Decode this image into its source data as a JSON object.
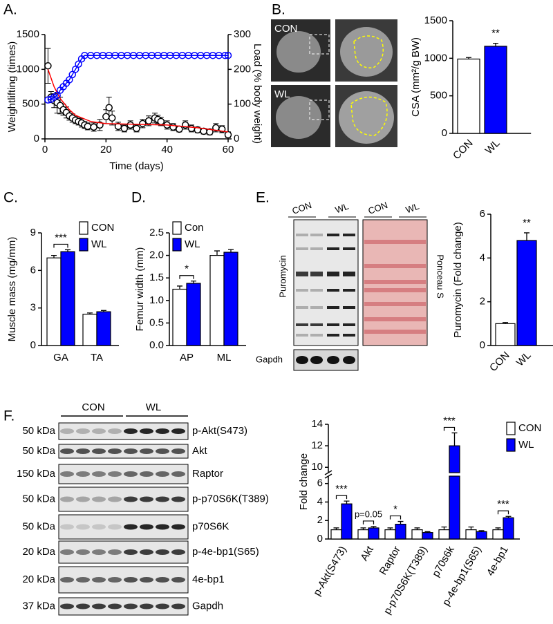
{
  "chart_data": [
    {
      "type": "line",
      "label": "A.",
      "xlabel": "Time (days)",
      "ylabel": "Weightlifting (times)",
      "y2label": "Load (% body weight)",
      "xlim": [
        0,
        60
      ],
      "xticks": [
        0,
        20,
        40,
        60
      ],
      "ylim": [
        0,
        1500
      ],
      "yticks": [
        0,
        500,
        1000,
        1500
      ],
      "y2lim": [
        0,
        300
      ],
      "y2ticks": [
        0,
        100,
        200,
        300
      ],
      "series": [
        {
          "color": "#000000",
          "marker": "circle",
          "line": false,
          "x": [
            1,
            2,
            3,
            4,
            5,
            6,
            7,
            8,
            9,
            10,
            11,
            12,
            13,
            14,
            16,
            18,
            20,
            21,
            22,
            24,
            26,
            28,
            30,
            32,
            34,
            36,
            37,
            38,
            40,
            42,
            44,
            46,
            48,
            50,
            52,
            54,
            56,
            58,
            60
          ],
          "values": [
            1050,
            600,
            550,
            520,
            480,
            420,
            380,
            330,
            300,
            270,
            250,
            230,
            200,
            180,
            170,
            200,
            320,
            450,
            300,
            180,
            150,
            200,
            150,
            220,
            260,
            300,
            280,
            250,
            200,
            170,
            140,
            200,
            150,
            130,
            110,
            100,
            160,
            140,
            60
          ],
          "errors": [
            250,
            80,
            100,
            150,
            120,
            80,
            80,
            60,
            60,
            50,
            50,
            60,
            50,
            50,
            60,
            80,
            100,
            150,
            100,
            60,
            50,
            60,
            50,
            60,
            70,
            70,
            60,
            60,
            60,
            50,
            40,
            60,
            50,
            40,
            40,
            40,
            60,
            50,
            40
          ]
        },
        {
          "color": "#ff0000",
          "marker": "none",
          "line": true,
          "x": [
            1,
            3,
            5,
            8,
            10,
            15,
            20,
            30,
            40,
            50,
            55,
            60
          ],
          "values": [
            1000,
            750,
            580,
            420,
            340,
            250,
            220,
            210,
            200,
            160,
            130,
            100
          ]
        },
        {
          "color": "#0000ff",
          "marker": "circle",
          "line": true,
          "axis": "y2",
          "x": [
            1,
            2,
            3,
            4,
            5,
            6,
            7,
            8,
            9,
            10,
            11,
            12,
            13,
            15,
            17,
            19,
            21,
            23,
            25,
            27,
            29,
            31,
            33,
            35,
            37,
            39,
            41,
            43,
            45,
            47,
            49,
            51,
            53,
            55,
            57,
            59,
            60
          ],
          "values": [
            112,
            114,
            120,
            125,
            140,
            150,
            160,
            170,
            185,
            200,
            215,
            230,
            240,
            240,
            240,
            240,
            240,
            240,
            240,
            240,
            240,
            240,
            240,
            240,
            240,
            240,
            240,
            240,
            240,
            240,
            240,
            240,
            240,
            240,
            240,
            240,
            240
          ]
        }
      ]
    },
    {
      "type": "bar",
      "label": "B.",
      "image_labels": [
        "CON",
        "WL"
      ],
      "ylabel": "CSA (mm²/g BW)",
      "categories": [
        "CON",
        "WL"
      ],
      "values": [
        990,
        1160
      ],
      "errors": [
        20,
        40
      ],
      "colors": [
        "#ffffff",
        "#0000ff"
      ],
      "annotations": [
        null,
        "**"
      ],
      "ylim": [
        0,
        1500
      ],
      "yticks": [
        0,
        500,
        1000,
        1500
      ]
    },
    {
      "type": "bar",
      "label": "C.",
      "ylabel": "Muscle mass (mg/mm)",
      "categories": [
        "GA",
        "TA"
      ],
      "series": [
        {
          "name": "CON",
          "color": "#ffffff",
          "values": [
            7.0,
            2.5
          ],
          "errors": [
            0.2,
            0.1
          ]
        },
        {
          "name": "WL",
          "color": "#0000ff",
          "values": [
            7.5,
            2.7
          ],
          "errors": [
            0.15,
            0.1
          ]
        }
      ],
      "annotations": [
        "***",
        null
      ],
      "ylim": [
        0,
        9
      ],
      "yticks": [
        0,
        3,
        6,
        9
      ]
    },
    {
      "type": "bar",
      "label": "D.",
      "ylabel": "Femur width (mm)",
      "categories": [
        "AP",
        "ML"
      ],
      "series": [
        {
          "name": "Con",
          "color": "#ffffff",
          "values": [
            1.25,
            2.0
          ],
          "errors": [
            0.07,
            0.1
          ]
        },
        {
          "name": "WL",
          "color": "#0000ff",
          "values": [
            1.38,
            2.07
          ],
          "errors": [
            0.05,
            0.06
          ]
        }
      ],
      "annotations": [
        "*",
        null
      ],
      "ylim": [
        0,
        2.5
      ],
      "yticks": [
        {
          "value": 0,
          "label": "0.0"
        },
        {
          "value": 0.5,
          "label": "0.5"
        },
        {
          "value": 1,
          "label": "1.0"
        },
        {
          "value": 1.5,
          "label": "1.5"
        },
        {
          "value": 2,
          "label": "2.0"
        },
        {
          "value": 2.5,
          "label": "2.5"
        }
      ]
    },
    {
      "type": "bar",
      "label": "E.",
      "blot_groups": [
        "CON",
        "WL",
        "CON",
        "WL"
      ],
      "blot_labels": [
        "Puromycin",
        "Ponceau S",
        "Gapdh"
      ],
      "ylabel": "Puromycin (Fold change)",
      "categories": [
        "CON",
        "WL"
      ],
      "values": [
        1.0,
        4.8
      ],
      "errors": [
        0.05,
        0.35
      ],
      "colors": [
        "#ffffff",
        "#0000ff"
      ],
      "annotations": [
        null,
        "**"
      ],
      "ylim": [
        0,
        6
      ],
      "yticks": [
        0,
        2,
        4,
        6
      ]
    },
    {
      "type": "bar",
      "label": "F.",
      "blot_groups": [
        "CON",
        "WL"
      ],
      "blot_rows": [
        {
          "marker": "50 kDa",
          "protein": "p-Akt(S473)"
        },
        {
          "marker": "50 kDa",
          "protein": "Akt"
        },
        {
          "marker": "150 kDa",
          "protein": "Raptor"
        },
        {
          "marker": "50 kDa",
          "protein": "p-p70S6K(T389)"
        },
        {
          "marker": "50 kDa",
          "protein": "p70S6K"
        },
        {
          "marker": "20 kDa",
          "protein": "p-4e-bp1(S65)"
        },
        {
          "marker": "20 kDa",
          "protein": "4e-bp1"
        },
        {
          "marker": "37 kDa",
          "protein": "Gapdh"
        }
      ],
      "ylabel": "Fold change",
      "categories": [
        "p-Akt(S473)",
        "Akt",
        "Raptor",
        "p-p70S6K(T389)",
        "p70s6k",
        "p-4e-bp1(S65)",
        "4e-bp1"
      ],
      "series": [
        {
          "name": "CON",
          "color": "#ffffff",
          "values": [
            1,
            1,
            1,
            1,
            1,
            1,
            1
          ],
          "errors": [
            0.2,
            0.2,
            0.2,
            0.2,
            0.3,
            0.3,
            0.2
          ]
        },
        {
          "name": "WL",
          "color": "#0000ff",
          "values": [
            3.8,
            1.2,
            1.6,
            0.7,
            12,
            0.8,
            2.3
          ],
          "errors": [
            0.3,
            0.15,
            0.3,
            0.1,
            1.2,
            0.1,
            0.15
          ]
        }
      ],
      "annotations": [
        "***",
        "p=0.05",
        "*",
        null,
        "***",
        null,
        "***"
      ],
      "ylim": [
        0,
        14
      ],
      "ybreak": [
        6.8,
        9.5
      ],
      "yticks": [
        0,
        2,
        4,
        6,
        10,
        12,
        14
      ]
    }
  ]
}
